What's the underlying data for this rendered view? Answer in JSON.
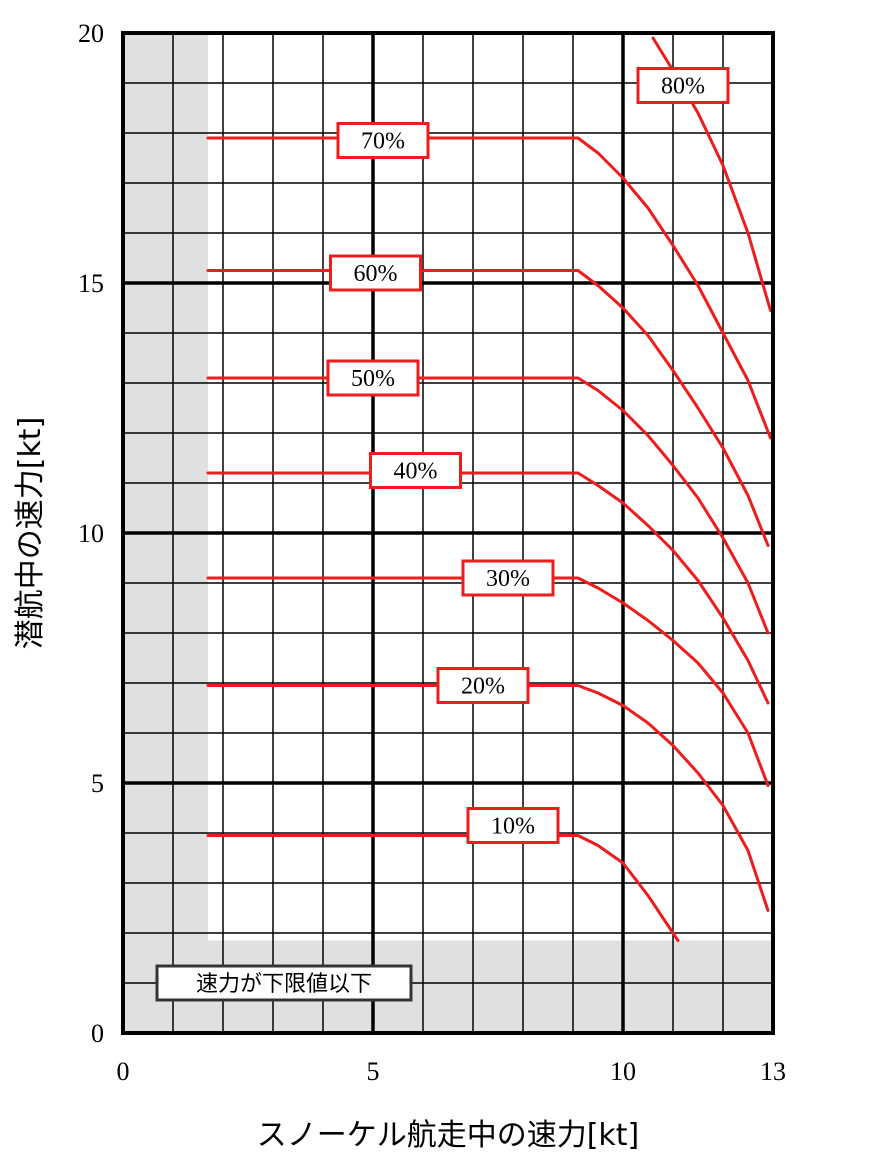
{
  "chart_data": {
    "type": "line",
    "xlabel": "スノーケル航走中の速力[kt]",
    "ylabel": "潜航中の速力[kt]",
    "xlim": [
      0,
      13
    ],
    "ylim": [
      0,
      20
    ],
    "x_ticks": [
      "0",
      "5",
      "10",
      "13"
    ],
    "y_ticks": [
      "0",
      "5",
      "10",
      "15",
      "20"
    ],
    "grid": true,
    "shaded_region_label": "速力が下限値以下",
    "shaded_region": {
      "x_below": 1.7,
      "y_below": 1.85
    },
    "series": [
      {
        "name": "10%",
        "label_pos": [
          7.8,
          4.15
        ],
        "x": [
          1.7,
          9.1,
          9.5,
          10.0,
          10.5,
          11.1
        ],
        "y": [
          3.95,
          3.95,
          3.75,
          3.4,
          2.75,
          1.85
        ]
      },
      {
        "name": "20%",
        "label_pos": [
          7.2,
          6.95
        ],
        "x": [
          1.7,
          9.1,
          9.5,
          10.0,
          10.5,
          11.0,
          11.5,
          12.0,
          12.5,
          12.9
        ],
        "y": [
          6.95,
          6.95,
          6.8,
          6.55,
          6.2,
          5.75,
          5.2,
          4.55,
          3.65,
          2.45
        ]
      },
      {
        "name": "30%",
        "label_pos": [
          7.7,
          9.1
        ],
        "x": [
          1.7,
          9.1,
          9.5,
          10.0,
          10.5,
          11.0,
          11.5,
          12.0,
          12.5,
          12.9
        ],
        "y": [
          9.1,
          9.1,
          8.9,
          8.6,
          8.25,
          7.85,
          7.4,
          6.8,
          6.0,
          4.95
        ]
      },
      {
        "name": "40%",
        "label_pos": [
          5.85,
          11.25
        ],
        "x": [
          1.7,
          9.1,
          9.5,
          10.0,
          10.5,
          11.0,
          11.5,
          12.0,
          12.5,
          12.9
        ],
        "y": [
          11.2,
          11.2,
          10.95,
          10.6,
          10.15,
          9.65,
          9.05,
          8.3,
          7.45,
          6.6
        ]
      },
      {
        "name": "50%",
        "label_pos": [
          5.0,
          13.1
        ],
        "x": [
          1.7,
          9.1,
          9.5,
          10.0,
          10.5,
          11.0,
          11.5,
          12.0,
          12.5,
          12.9
        ],
        "y": [
          13.1,
          13.1,
          12.85,
          12.45,
          11.95,
          11.35,
          10.7,
          9.9,
          9.0,
          8.0
        ]
      },
      {
        "name": "60%",
        "label_pos": [
          5.05,
          15.2
        ],
        "x": [
          1.7,
          9.1,
          9.5,
          10.0,
          10.5,
          11.0,
          11.5,
          12.0,
          12.5,
          12.9
        ],
        "y": [
          15.25,
          15.25,
          14.95,
          14.5,
          13.95,
          13.25,
          12.5,
          11.7,
          10.75,
          9.75
        ]
      },
      {
        "name": "70%",
        "label_pos": [
          5.2,
          17.85
        ],
        "x": [
          1.7,
          9.1,
          9.5,
          10.0,
          10.5,
          11.0,
          11.5,
          12.0,
          12.5,
          12.95
        ],
        "y": [
          17.9,
          17.9,
          17.6,
          17.1,
          16.5,
          15.75,
          14.95,
          14.0,
          13.05,
          11.9
        ]
      },
      {
        "name": "80%",
        "label_pos": [
          11.2,
          18.95
        ],
        "x": [
          10.6,
          11.0,
          11.5,
          12.0,
          12.5,
          12.95
        ],
        "y": [
          19.9,
          19.25,
          18.4,
          17.35,
          16.0,
          14.45
        ]
      }
    ],
    "colors": {
      "series": "#ee1c1c",
      "shade": "#e0e0e0",
      "grid": "#000000",
      "box_border": "#ee1c1c",
      "note_border": "#333333"
    }
  }
}
